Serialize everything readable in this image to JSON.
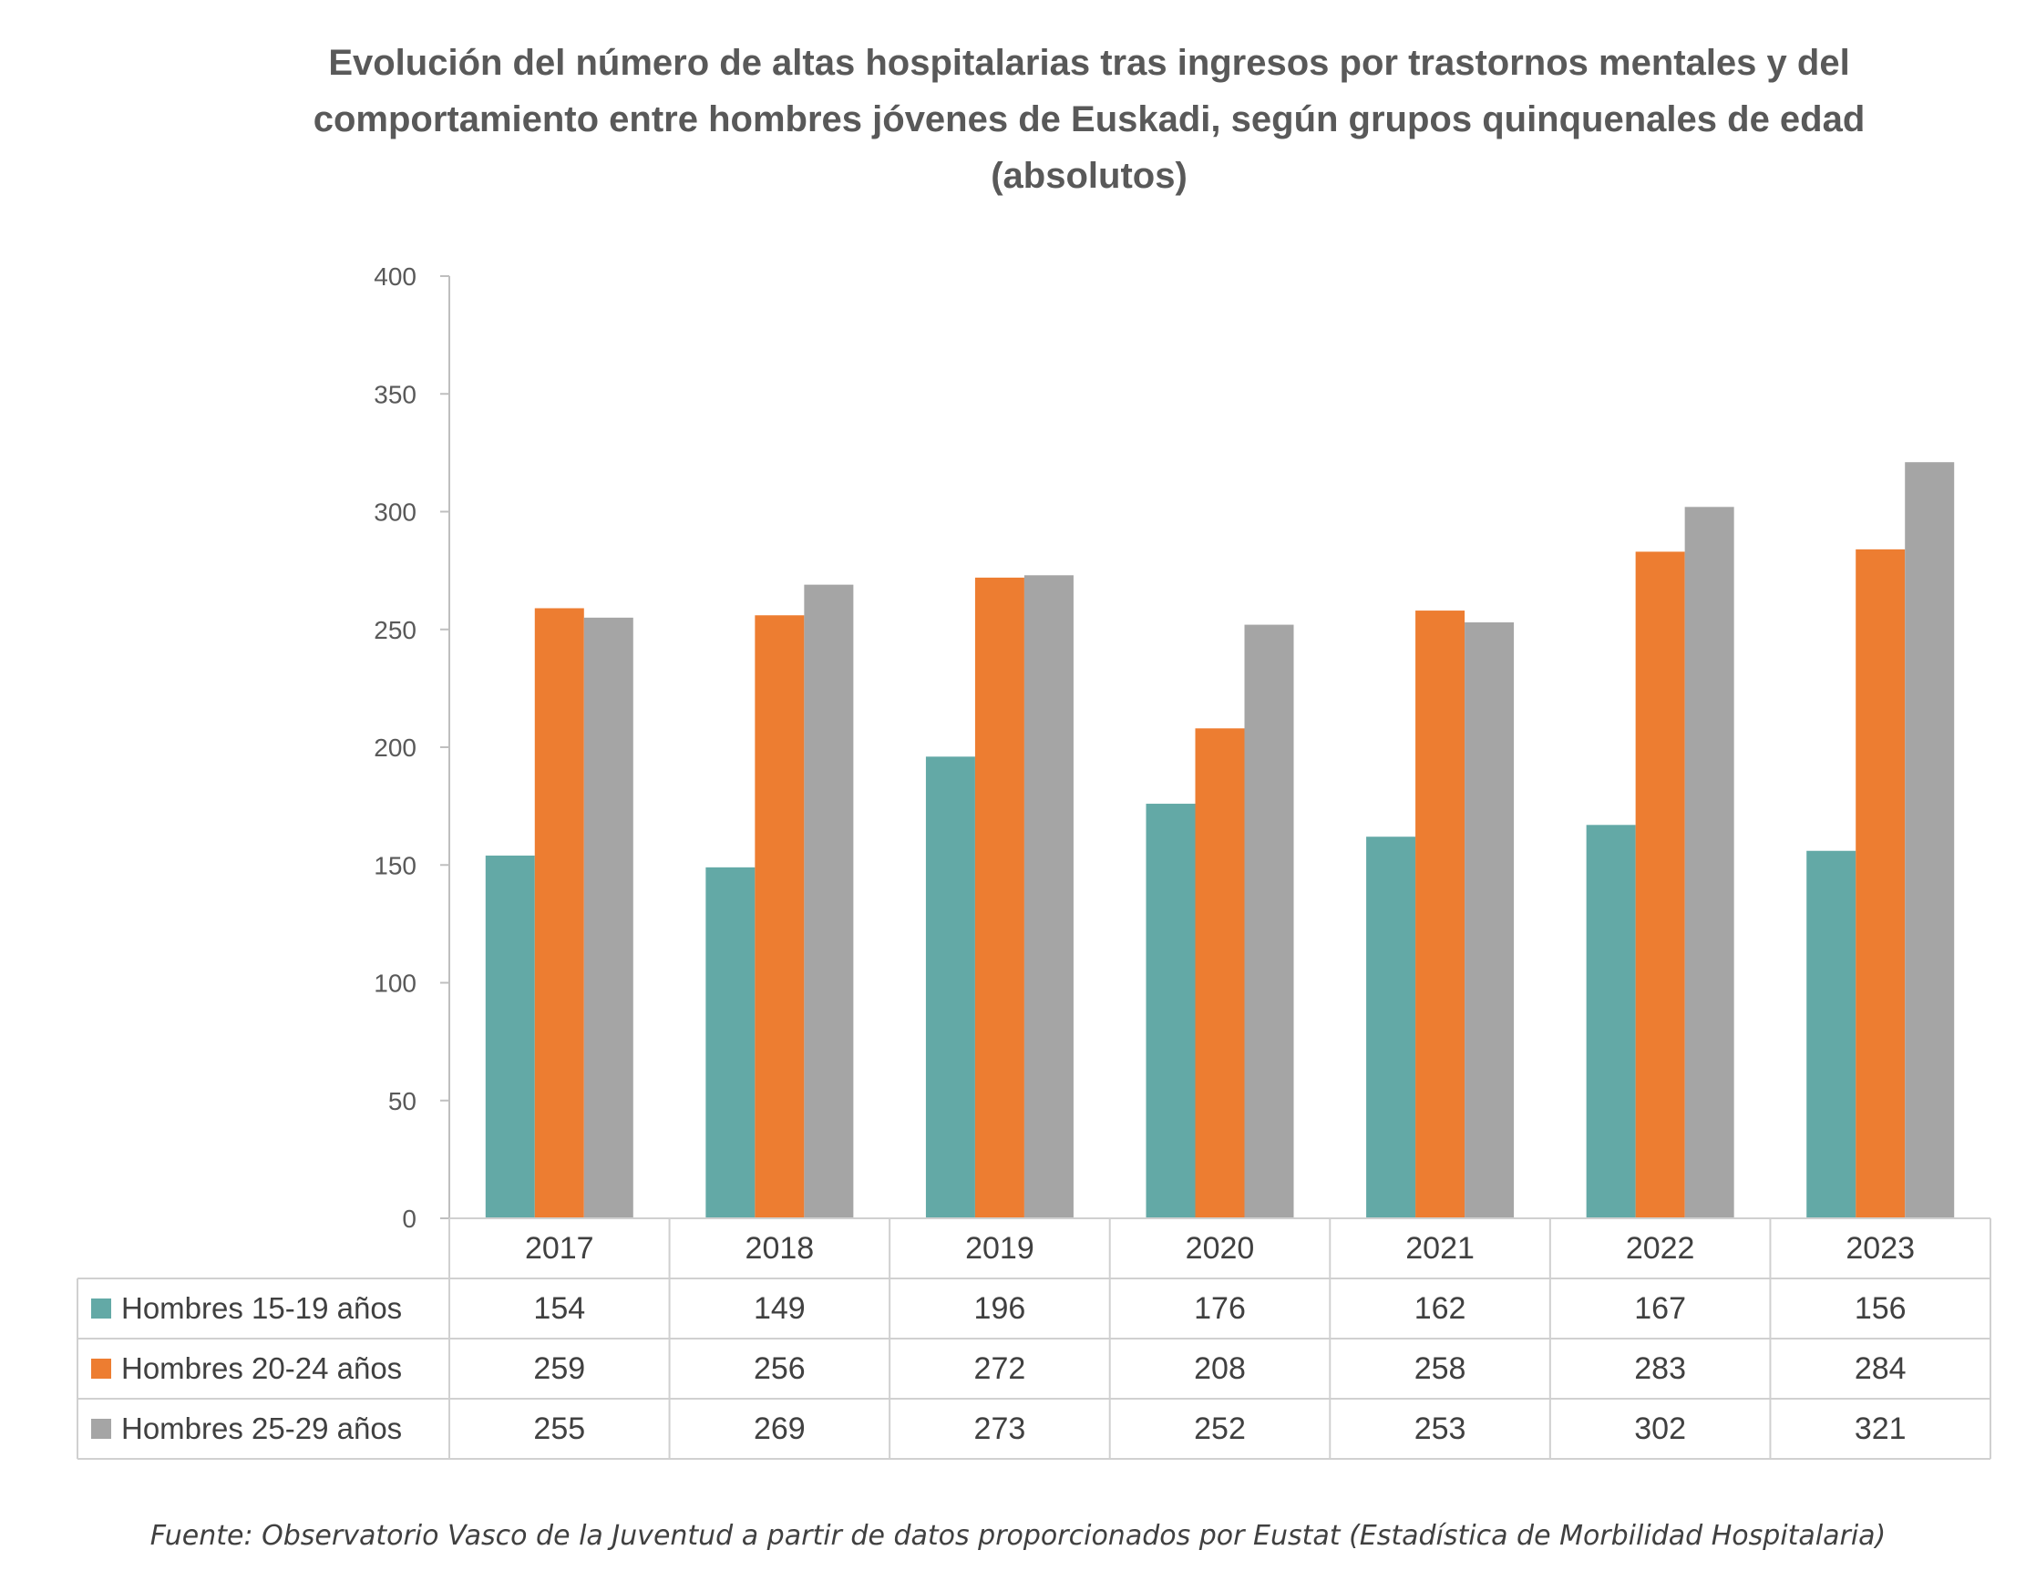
{
  "chart_data": {
    "type": "bar",
    "title": "Evolución del número de altas hospitalarias tras ingresos por trastornos mentales y del comportamiento entre hombres jóvenes de Euskadi, según grupos quinquenales de edad (absolutos)",
    "categories": [
      "2017",
      "2018",
      "2019",
      "2020",
      "2021",
      "2022",
      "2023"
    ],
    "series": [
      {
        "name": "Hombres 15-19 años",
        "color": "#63A9A6",
        "values": [
          154,
          149,
          196,
          176,
          162,
          167,
          156
        ]
      },
      {
        "name": "Hombres 20-24 años",
        "color": "#ED7D31",
        "values": [
          259,
          256,
          272,
          208,
          258,
          283,
          284
        ]
      },
      {
        "name": "Hombres 25-29 años",
        "color": "#A5A5A5",
        "values": [
          255,
          269,
          273,
          252,
          253,
          302,
          321
        ]
      }
    ],
    "yticks": [
      "0",
      "50",
      "100",
      "150",
      "200",
      "250",
      "300",
      "350",
      "400"
    ],
    "ylim": [
      0,
      400
    ],
    "xlabel": "",
    "ylabel": "",
    "grid": false,
    "legend": "data-table-left",
    "source": "Fuente: Observatorio Vasco de la Juventud a partir de datos proporcionados por Eustat (Estadística de Morbilidad Hospitalaria)"
  }
}
